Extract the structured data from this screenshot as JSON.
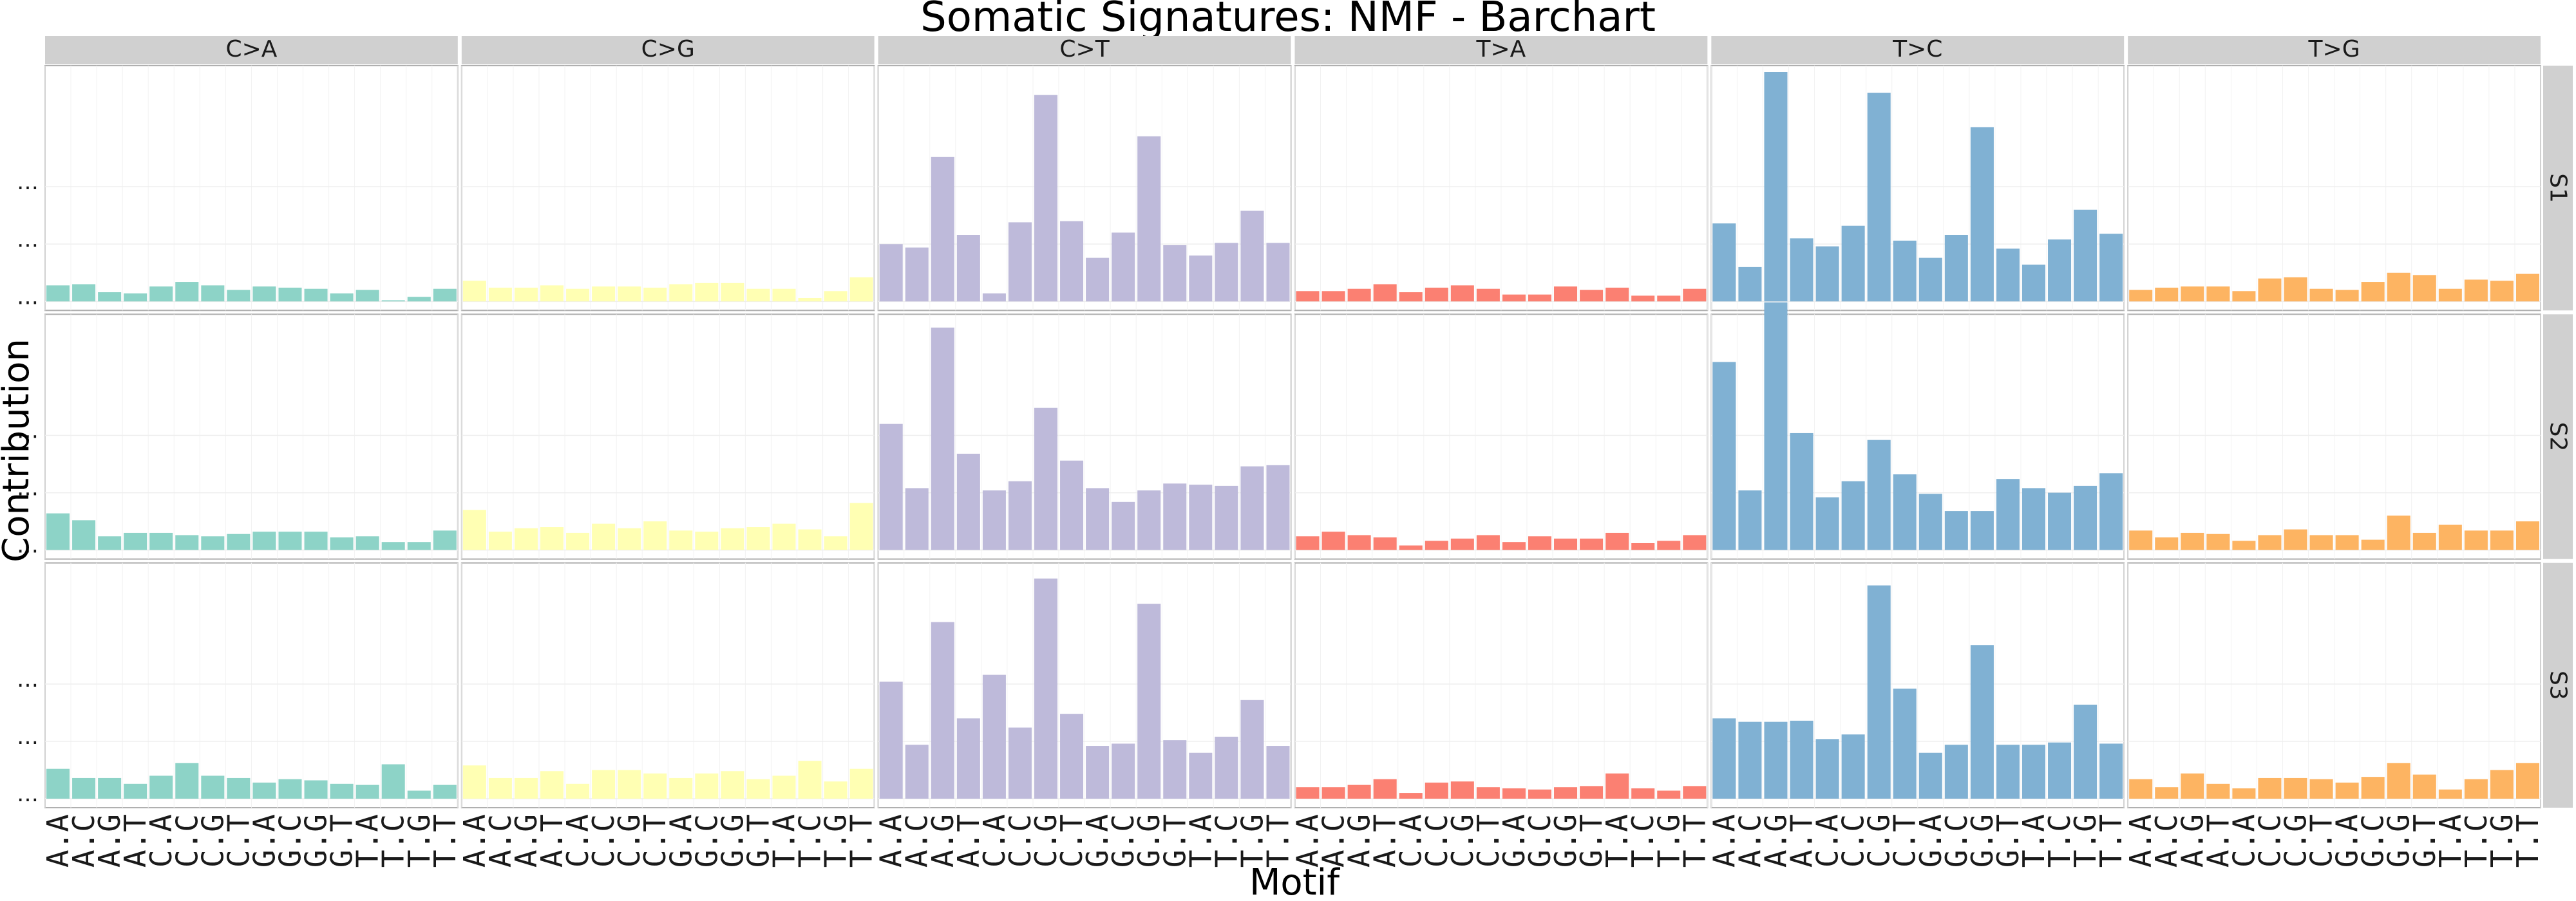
{
  "chart_data": {
    "type": "bar",
    "title": "Somatic Signatures: NMF - Barchart",
    "xlabel": "Motif",
    "ylabel": "Contribution",
    "facet_columns": [
      "C>A",
      "C>G",
      "C>T",
      "T>A",
      "T>C",
      "T>G"
    ],
    "facet_rows": [
      "S1",
      "S2",
      "S3"
    ],
    "categories": [
      "A.A",
      "A.C",
      "A.G",
      "A.T",
      "C.A",
      "C.C",
      "C.G",
      "C.T",
      "G.A",
      "G.C",
      "G.G",
      "G.T",
      "T.A",
      "T.C",
      "T.G",
      "T.T"
    ],
    "x_tick_labels": [
      "A.A",
      "A.C",
      "A.G",
      "A.T",
      "C.A",
      "C.C",
      "C.G",
      "C.T",
      "G.A",
      "G.C",
      "G.G",
      "G.T",
      "T.A",
      "T.C",
      "T.G",
      "T.T"
    ],
    "colors": {
      "C>A": "#8DD3C7",
      "C>G": "#FFFFB3",
      "C>T": "#BEBADA",
      "T>A": "#FB8072",
      "T>C": "#80B1D3",
      "T>G": "#FDB462"
    },
    "ylim": [
      0,
      1
    ],
    "y_tick_values": [
      0,
      0.25,
      0.5
    ],
    "y_tick_labels_visible": false,
    "grid": true,
    "series": [
      {
        "signature": "S1",
        "mutation": "C>A",
        "values": [
          0.07,
          0.075,
          0.04,
          0.035,
          0.065,
          0.085,
          0.07,
          0.05,
          0.065,
          0.06,
          0.055,
          0.035,
          0.05,
          0.005,
          0.02,
          0.055
        ]
      },
      {
        "signature": "S1",
        "mutation": "C>G",
        "values": [
          0.09,
          0.06,
          0.06,
          0.07,
          0.055,
          0.065,
          0.065,
          0.06,
          0.075,
          0.08,
          0.08,
          0.055,
          0.055,
          0.015,
          0.045,
          0.105
        ]
      },
      {
        "signature": "S1",
        "mutation": "C>T",
        "values": [
          0.25,
          0.235,
          0.63,
          0.29,
          0.035,
          0.345,
          0.9,
          0.35,
          0.19,
          0.3,
          0.72,
          0.245,
          0.2,
          0.255,
          0.395,
          0.255
        ]
      },
      {
        "signature": "S1",
        "mutation": "T>A",
        "values": [
          0.045,
          0.045,
          0.055,
          0.075,
          0.04,
          0.06,
          0.07,
          0.055,
          0.03,
          0.03,
          0.065,
          0.05,
          0.06,
          0.025,
          0.025,
          0.055
        ]
      },
      {
        "signature": "S1",
        "mutation": "T>C",
        "values": [
          0.34,
          0.15,
          1.0,
          0.275,
          0.24,
          0.33,
          0.91,
          0.265,
          0.19,
          0.29,
          0.76,
          0.23,
          0.16,
          0.27,
          0.4,
          0.295
        ]
      },
      {
        "signature": "S1",
        "mutation": "T>G",
        "values": [
          0.05,
          0.06,
          0.065,
          0.065,
          0.045,
          0.1,
          0.105,
          0.055,
          0.05,
          0.085,
          0.125,
          0.115,
          0.055,
          0.095,
          0.09,
          0.12
        ]
      },
      {
        "signature": "S2",
        "mutation": "C>A",
        "values": [
          0.16,
          0.13,
          0.06,
          0.075,
          0.075,
          0.065,
          0.06,
          0.07,
          0.08,
          0.08,
          0.08,
          0.055,
          0.06,
          0.035,
          0.035,
          0.085
        ]
      },
      {
        "signature": "S2",
        "mutation": "C>G",
        "values": [
          0.175,
          0.08,
          0.095,
          0.1,
          0.075,
          0.115,
          0.095,
          0.125,
          0.085,
          0.08,
          0.095,
          0.1,
          0.115,
          0.09,
          0.06,
          0.205
        ]
      },
      {
        "signature": "S2",
        "mutation": "C>T",
        "values": [
          0.55,
          0.27,
          0.97,
          0.42,
          0.26,
          0.3,
          0.62,
          0.39,
          0.27,
          0.21,
          0.26,
          0.29,
          0.285,
          0.28,
          0.365,
          0.37
        ]
      },
      {
        "signature": "S2",
        "mutation": "T>A",
        "values": [
          0.06,
          0.08,
          0.065,
          0.055,
          0.02,
          0.04,
          0.05,
          0.065,
          0.035,
          0.06,
          0.05,
          0.05,
          0.075,
          0.03,
          0.04,
          0.065
        ]
      },
      {
        "signature": "S2",
        "mutation": "T>C",
        "values": [
          0.82,
          0.26,
          1.08,
          0.51,
          0.23,
          0.3,
          0.48,
          0.33,
          0.245,
          0.17,
          0.17,
          0.31,
          0.27,
          0.25,
          0.28,
          0.335
        ]
      },
      {
        "signature": "S2",
        "mutation": "T>G",
        "values": [
          0.085,
          0.055,
          0.075,
          0.07,
          0.04,
          0.065,
          0.09,
          0.065,
          0.065,
          0.045,
          0.15,
          0.075,
          0.11,
          0.085,
          0.085,
          0.125
        ]
      },
      {
        "signature": "S3",
        "mutation": "C>A",
        "values": [
          0.13,
          0.09,
          0.09,
          0.065,
          0.1,
          0.155,
          0.1,
          0.09,
          0.07,
          0.085,
          0.08,
          0.065,
          0.06,
          0.15,
          0.035,
          0.06
        ]
      },
      {
        "signature": "S3",
        "mutation": "C>G",
        "values": [
          0.145,
          0.09,
          0.09,
          0.12,
          0.065,
          0.125,
          0.125,
          0.11,
          0.09,
          0.11,
          0.12,
          0.085,
          0.1,
          0.165,
          0.075,
          0.13
        ]
      },
      {
        "signature": "S3",
        "mutation": "C>T",
        "values": [
          0.51,
          0.235,
          0.77,
          0.35,
          0.54,
          0.31,
          0.96,
          0.37,
          0.23,
          0.24,
          0.85,
          0.255,
          0.2,
          0.27,
          0.43,
          0.23
        ]
      },
      {
        "signature": "S3",
        "mutation": "T>A",
        "values": [
          0.05,
          0.05,
          0.06,
          0.085,
          0.025,
          0.07,
          0.075,
          0.05,
          0.045,
          0.04,
          0.05,
          0.055,
          0.11,
          0.045,
          0.035,
          0.055
        ]
      },
      {
        "signature": "S3",
        "mutation": "T>C",
        "values": [
          0.35,
          0.335,
          0.335,
          0.34,
          0.26,
          0.28,
          0.93,
          0.48,
          0.2,
          0.235,
          0.67,
          0.235,
          0.235,
          0.245,
          0.41,
          0.24
        ]
      },
      {
        "signature": "S3",
        "mutation": "T>G",
        "values": [
          0.085,
          0.05,
          0.11,
          0.065,
          0.045,
          0.09,
          0.09,
          0.085,
          0.07,
          0.095,
          0.155,
          0.105,
          0.04,
          0.085,
          0.125,
          0.155
        ]
      }
    ]
  }
}
